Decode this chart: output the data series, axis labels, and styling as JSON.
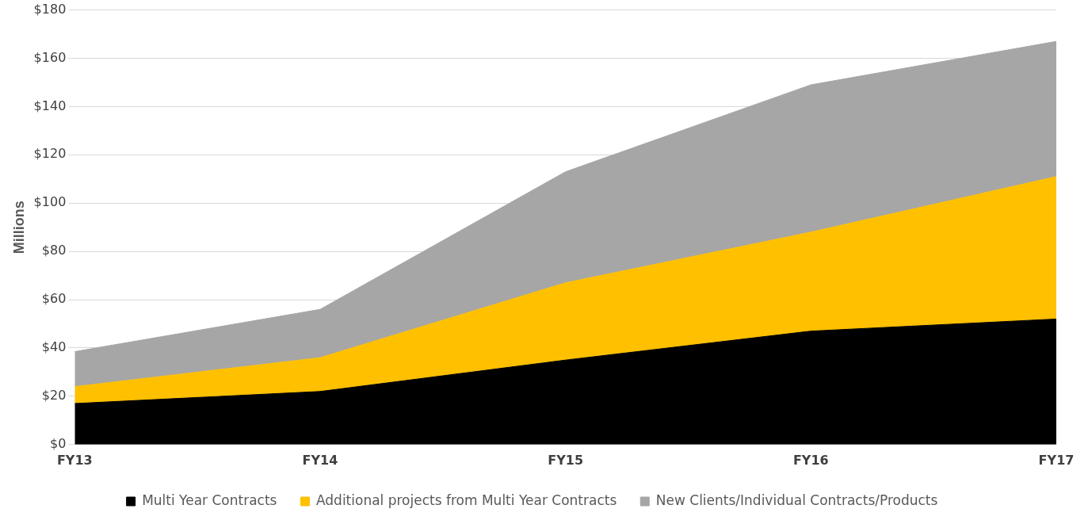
{
  "chart_data": {
    "type": "area",
    "stacked": true,
    "ylabel": "Millions",
    "categories": [
      "FY13",
      "FY14",
      "FY15",
      "FY16",
      "FY17"
    ],
    "series": [
      {
        "name": "Multi Year Contracts",
        "color": "#000000",
        "values": [
          17,
          22,
          35,
          47,
          52
        ]
      },
      {
        "name": "Additional projects from Multi Year Contracts",
        "color": "#ffc000",
        "values": [
          7,
          14,
          32,
          41,
          59
        ]
      },
      {
        "name": "New Clients/Individual Contracts/Products",
        "color": "#a6a6a6",
        "values": [
          14.5,
          20,
          46,
          61,
          56
        ]
      }
    ],
    "ylim": [
      0,
      180
    ],
    "yticks": [
      {
        "value": 0,
        "label": "$0"
      },
      {
        "value": 20,
        "label": "$20"
      },
      {
        "value": 40,
        "label": "$40"
      },
      {
        "value": 60,
        "label": "$60"
      },
      {
        "value": 80,
        "label": "$80"
      },
      {
        "value": 100,
        "label": "$100"
      },
      {
        "value": 120,
        "label": "$120"
      },
      {
        "value": 140,
        "label": "$140"
      },
      {
        "value": 160,
        "label": "$160"
      },
      {
        "value": 180,
        "label": "$180"
      }
    ],
    "grid": "y",
    "legend": "bottom"
  }
}
